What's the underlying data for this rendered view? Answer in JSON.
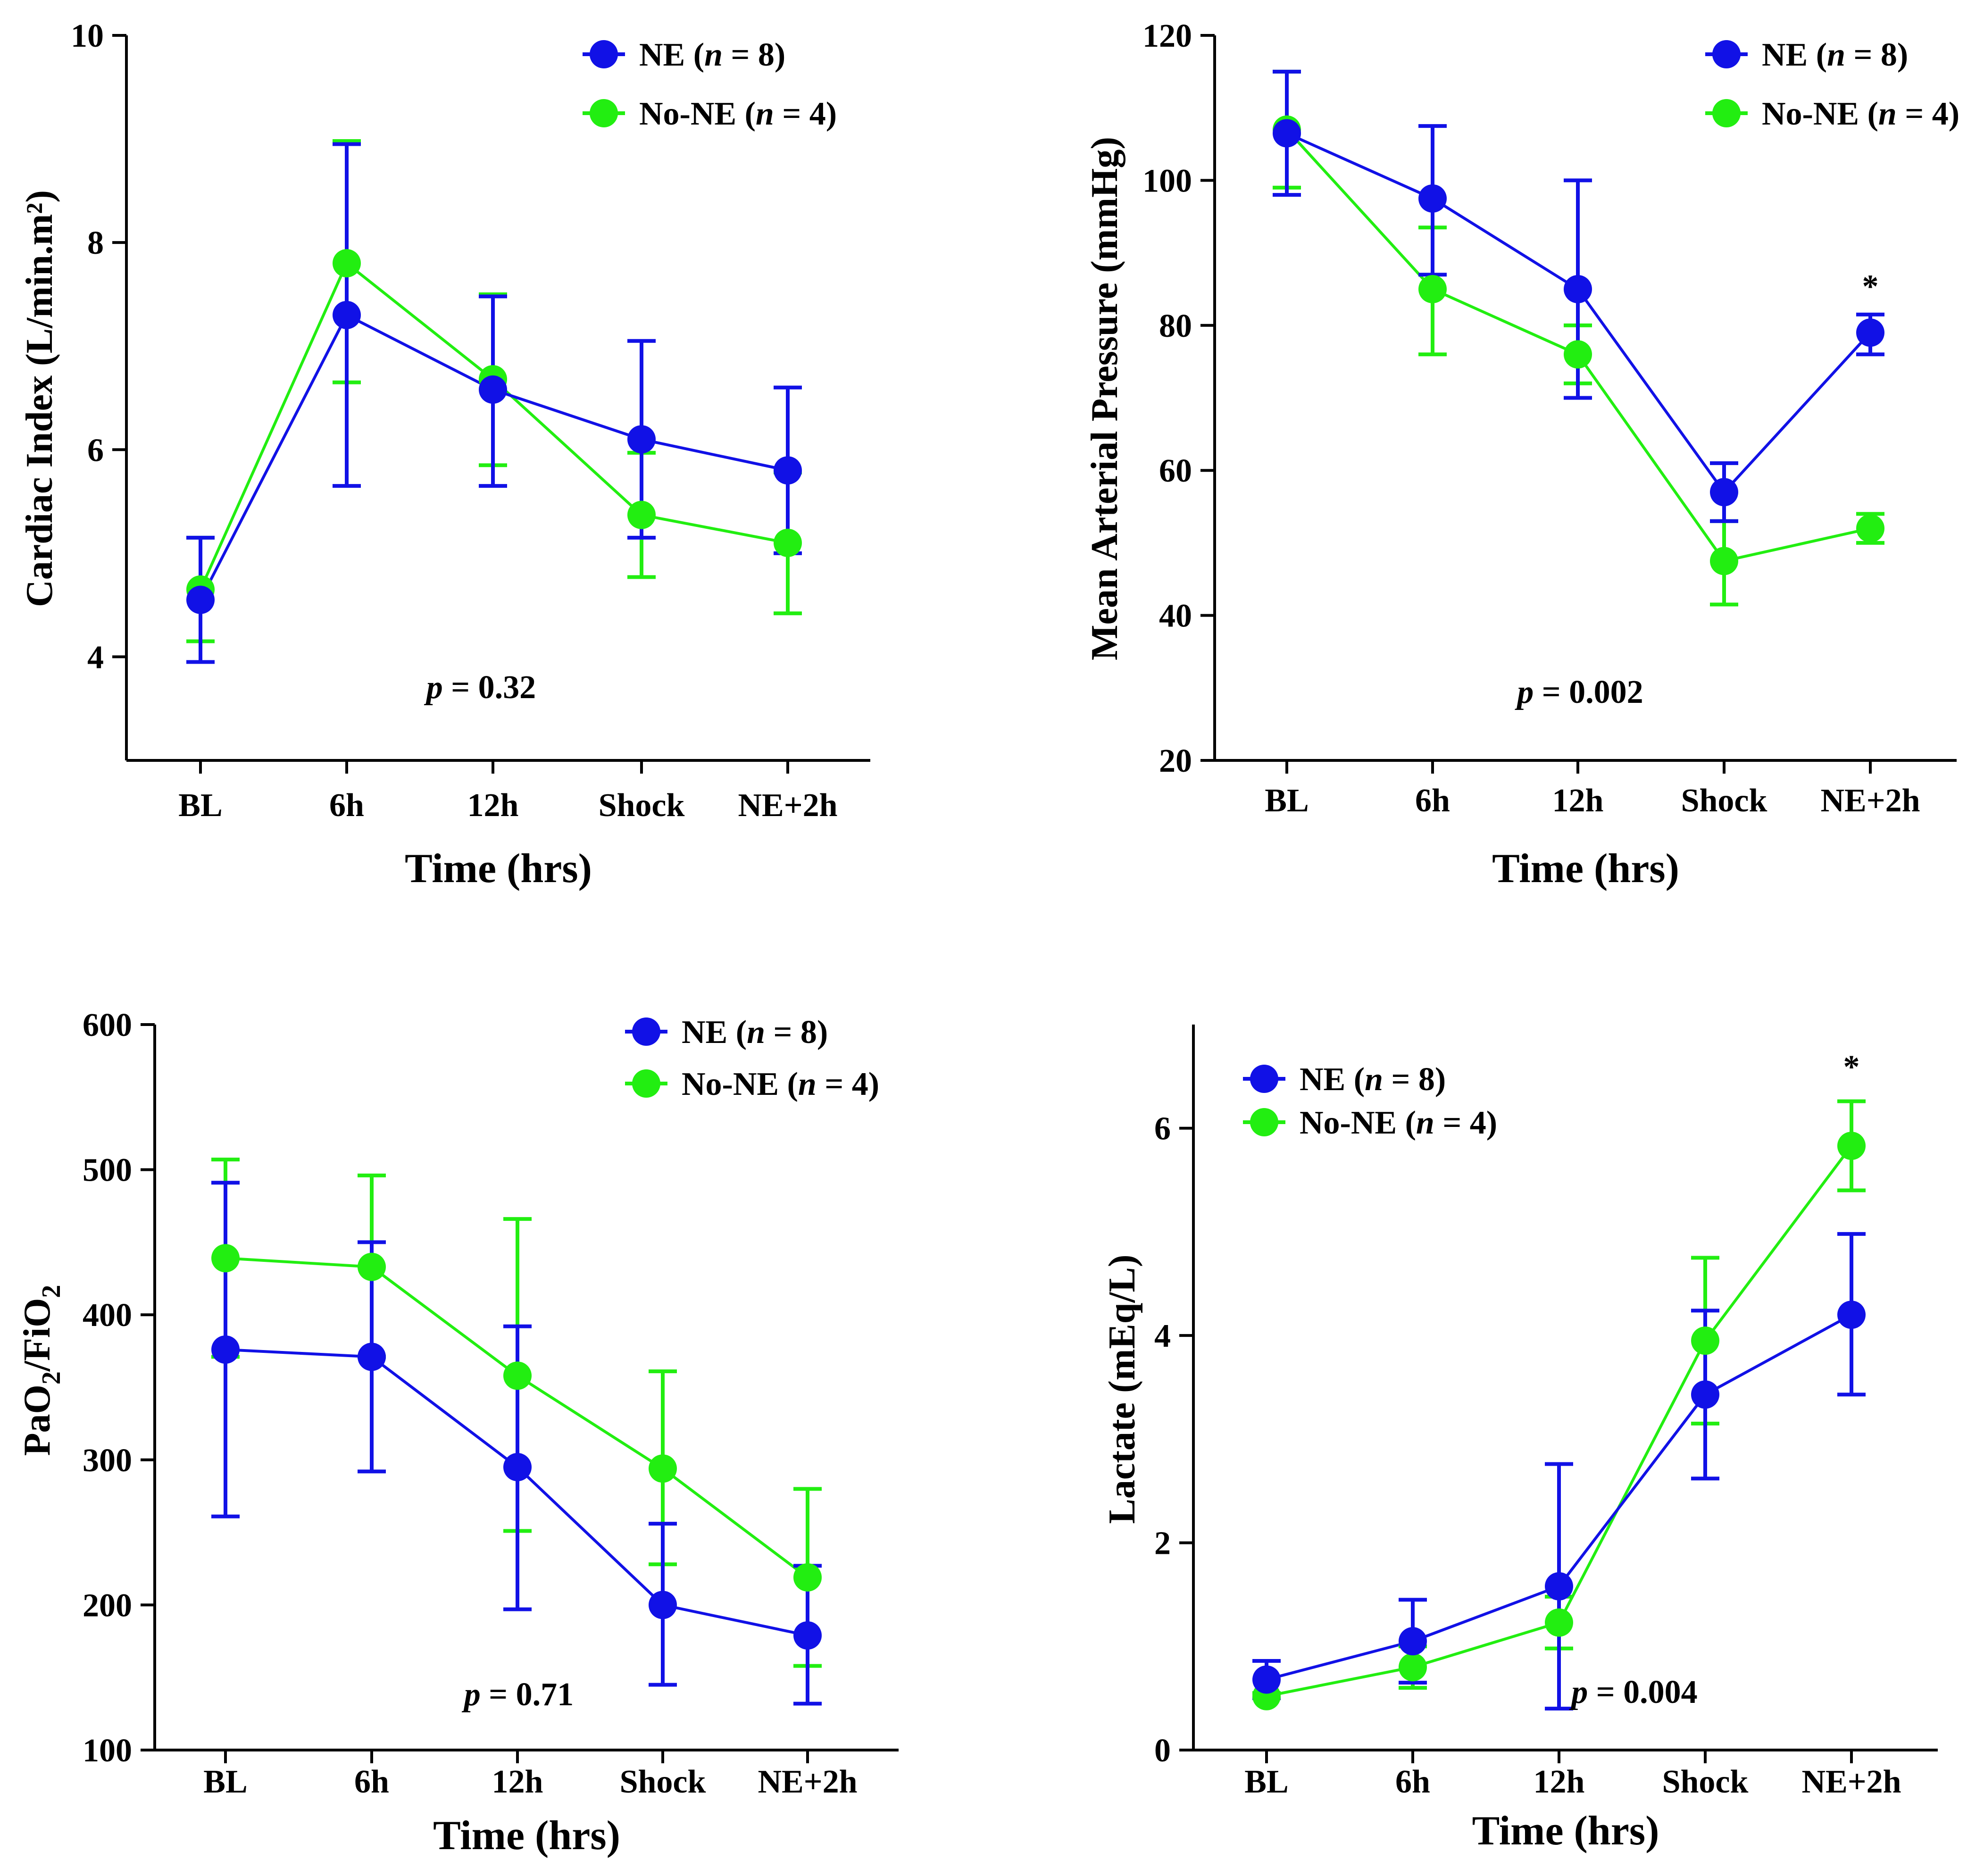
{
  "colors": {
    "NE": "#1111e6",
    "No-NE": "#22ee11",
    "axis": "#000000"
  },
  "chart_data": [
    {
      "type": "line",
      "title": "",
      "xlabel": "Time (hrs)",
      "ylabel": "Cardiac Index (L/min.m²)",
      "categories": [
        "BL",
        "6h",
        "12h",
        "Shock",
        "NE+2h"
      ],
      "ylim": [
        3,
        10
      ],
      "yticks": [
        4,
        6,
        8,
        10
      ],
      "legend_position": "top-right",
      "series": [
        {
          "key": "NE",
          "name_prefix": "NE (",
          "name_n": "n",
          "name_suffix": " = 8)",
          "color": "#1111e6",
          "values": [
            4.55,
            7.3,
            6.58,
            6.1,
            5.8
          ],
          "err_low": [
            3.95,
            5.65,
            5.65,
            5.15,
            5.0
          ],
          "err_high": [
            5.15,
            8.95,
            7.48,
            7.05,
            6.6
          ]
        },
        {
          "key": "No-NE",
          "name_prefix": "No-NE (",
          "name_n": "n",
          "name_suffix": " = 4)",
          "color": "#22ee11",
          "values": [
            4.65,
            7.8,
            6.68,
            5.37,
            5.1
          ],
          "err_low": [
            4.15,
            6.65,
            5.85,
            4.77,
            4.42
          ],
          "err_high": [
            5.15,
            8.98,
            7.5,
            5.97,
            5.78
          ]
        }
      ],
      "pvalue": {
        "p": "p",
        "text": " = 0.32"
      },
      "annotations": []
    },
    {
      "type": "line",
      "title": "",
      "xlabel": "Time (hrs)",
      "ylabel": "Mean Arterial Pressure (mmHg)",
      "categories": [
        "BL",
        "6h",
        "12h",
        "Shock",
        "NE+2h"
      ],
      "ylim": [
        20,
        120
      ],
      "yticks": [
        20,
        40,
        60,
        80,
        100,
        120
      ],
      "legend_position": "top-right",
      "series": [
        {
          "key": "NE",
          "name_prefix": "NE (",
          "name_n": "n",
          "name_suffix": " = 8)",
          "color": "#1111e6",
          "values": [
            106.5,
            97.5,
            85,
            57,
            79
          ],
          "err_low": [
            98,
            87,
            70,
            53,
            76
          ],
          "err_high": [
            115,
            107.5,
            100,
            61,
            81.5
          ]
        },
        {
          "key": "No-NE",
          "name_prefix": "No-NE (",
          "name_n": "n",
          "name_suffix": " = 4)",
          "color": "#22ee11",
          "values": [
            107,
            85,
            76,
            47.5,
            52
          ],
          "err_low": [
            99,
            76,
            72,
            41.5,
            50
          ],
          "err_high": [
            115,
            93.5,
            80,
            53,
            54
          ]
        }
      ],
      "pvalue": {
        "p": "p",
        "text": " = 0.002"
      },
      "annotations": [
        {
          "category": "NE+2h",
          "value": 85.5,
          "text": "*"
        }
      ]
    },
    {
      "type": "line",
      "title": "",
      "xlabel": "Time (hrs)",
      "ylabel_main": "PaO",
      "ylabel_sub1": "2",
      "ylabel_mid": "/FiO",
      "ylabel_sub2": "2",
      "categories": [
        "BL",
        "6h",
        "12h",
        "Shock",
        "NE+2h"
      ],
      "ylim": [
        100,
        600
      ],
      "yticks": [
        100,
        200,
        300,
        400,
        500,
        600
      ],
      "legend_position": "top-right",
      "series": [
        {
          "key": "NE",
          "name_prefix": "NE (",
          "name_n": "n",
          "name_suffix": " = 8)",
          "color": "#1111e6",
          "values": [
            376,
            371,
            295,
            200,
            179
          ],
          "err_low": [
            261,
            292,
            197,
            145,
            132
          ],
          "err_high": [
            491,
            450,
            392,
            256,
            227
          ]
        },
        {
          "key": "No-NE",
          "name_prefix": "No-NE (",
          "name_n": "n",
          "name_suffix": " = 4)",
          "color": "#22ee11",
          "values": [
            439,
            433,
            358,
            294,
            219
          ],
          "err_low": [
            371,
            371,
            251,
            228,
            158
          ],
          "err_high": [
            507,
            496,
            466,
            361,
            280
          ]
        }
      ],
      "pvalue": {
        "p": "p",
        "text": " = 0.71"
      },
      "annotations": []
    },
    {
      "type": "line",
      "title": "",
      "xlabel": "Time (hrs)",
      "ylabel": "Lactate (mEq/L)",
      "categories": [
        "BL",
        "6h",
        "12h",
        "Shock",
        "NE+2h"
      ],
      "ylim": [
        0,
        7
      ],
      "yticks": [
        0,
        2,
        4,
        6
      ],
      "legend_position": "top-left",
      "series": [
        {
          "key": "NE",
          "name_prefix": "NE (",
          "name_n": "n",
          "name_suffix": " = 8)",
          "color": "#1111e6",
          "values": [
            0.68,
            1.05,
            1.58,
            3.43,
            4.2
          ],
          "err_low": [
            0.5,
            0.65,
            0.4,
            2.62,
            3.43
          ],
          "err_high": [
            0.86,
            1.45,
            2.76,
            4.24,
            4.98
          ]
        },
        {
          "key": "No-NE",
          "name_prefix": "No-NE (",
          "name_n": "n",
          "name_suffix": " = 4)",
          "color": "#22ee11",
          "values": [
            0.52,
            0.8,
            1.23,
            3.95,
            5.83
          ],
          "err_low": [
            0.5,
            0.6,
            0.98,
            3.15,
            5.4
          ],
          "err_high": [
            0.55,
            1.0,
            1.48,
            4.75,
            6.26
          ]
        }
      ],
      "pvalue": {
        "p": "p",
        "text": " = 0.004"
      },
      "annotations": [
        {
          "category": "NE+2h",
          "value": 6.6,
          "text": "*"
        }
      ]
    }
  ]
}
